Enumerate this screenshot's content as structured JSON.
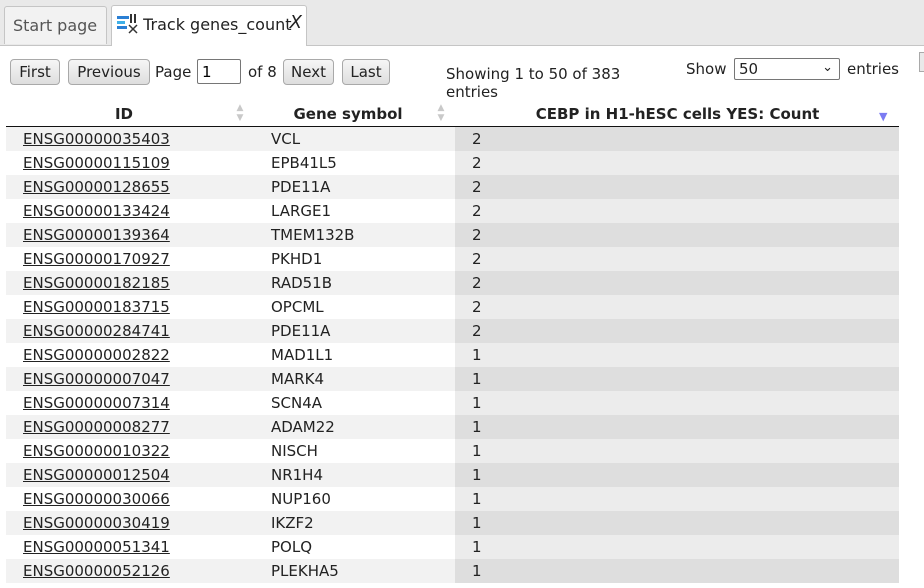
{
  "tabs": {
    "start_label": "Start page",
    "active_label": "Track genes_count",
    "close_glyph": "X"
  },
  "pager": {
    "first": "First",
    "previous": "Previous",
    "page_label": "Page",
    "page_value": "1",
    "of_label": "of 8",
    "next": "Next",
    "last": "Last"
  },
  "info_text": "Showing 1 to 50 of 383 entries",
  "length": {
    "show_label": "Show",
    "selected": "50",
    "entries_label": "entries"
  },
  "columns": {
    "id": "ID",
    "symbol": "Gene symbol",
    "count": "CEBP in H1-hESC cells YES: Count"
  },
  "rows": [
    {
      "id": "ENSG00000035403",
      "symbol": "VCL",
      "count": "2"
    },
    {
      "id": "ENSG00000115109",
      "symbol": "EPB41L5",
      "count": "2"
    },
    {
      "id": "ENSG00000128655",
      "symbol": "PDE11A",
      "count": "2"
    },
    {
      "id": "ENSG00000133424",
      "symbol": "LARGE1",
      "count": "2"
    },
    {
      "id": "ENSG00000139364",
      "symbol": "TMEM132B",
      "count": "2"
    },
    {
      "id": "ENSG00000170927",
      "symbol": "PKHD1",
      "count": "2"
    },
    {
      "id": "ENSG00000182185",
      "symbol": "RAD51B",
      "count": "2"
    },
    {
      "id": "ENSG00000183715",
      "symbol": "OPCML",
      "count": "2"
    },
    {
      "id": "ENSG00000284741",
      "symbol": "PDE11A",
      "count": "2"
    },
    {
      "id": "ENSG00000002822",
      "symbol": "MAD1L1",
      "count": "1"
    },
    {
      "id": "ENSG00000007047",
      "symbol": "MARK4",
      "count": "1"
    },
    {
      "id": "ENSG00000007314",
      "symbol": "SCN4A",
      "count": "1"
    },
    {
      "id": "ENSG00000008277",
      "symbol": "ADAM22",
      "count": "1"
    },
    {
      "id": "ENSG00000010322",
      "symbol": "NISCH",
      "count": "1"
    },
    {
      "id": "ENSG00000012504",
      "symbol": "NR1H4",
      "count": "1"
    },
    {
      "id": "ENSG00000030066",
      "symbol": "NUP160",
      "count": "1"
    },
    {
      "id": "ENSG00000030419",
      "symbol": "IKZF2",
      "count": "1"
    },
    {
      "id": "ENSG00000051341",
      "symbol": "POLQ",
      "count": "1"
    },
    {
      "id": "ENSG00000052126",
      "symbol": "PLEKHA5",
      "count": "1"
    }
  ]
}
